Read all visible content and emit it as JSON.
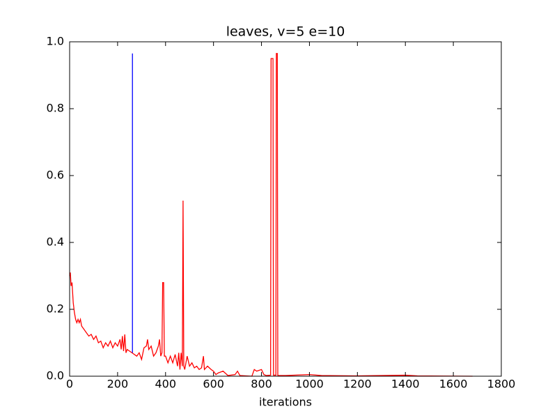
{
  "chart_data": {
    "type": "line",
    "title": "leaves, v=5 e=10",
    "x_label": "iterations",
    "xlim": [
      0,
      1800
    ],
    "xticks": [
      0,
      200,
      400,
      600,
      800,
      1000,
      1200,
      1400,
      1600,
      1800
    ],
    "ylim": [
      0,
      1.0
    ],
    "yticks": [
      {
        "value": 0,
        "label": "0.0"
      },
      {
        "value": 0.2,
        "label": "0.2"
      },
      {
        "value": 0.4,
        "label": "0.4"
      },
      {
        "value": 0.6,
        "label": "0.6"
      },
      {
        "value": 0.8,
        "label": "0.8"
      },
      {
        "value": 1.0,
        "label": "1.0"
      }
    ],
    "grid": false,
    "series": [
      {
        "color": "#ff0000",
        "x": [
          0,
          3,
          6,
          10,
          15,
          20,
          25,
          30,
          35,
          40,
          45,
          50,
          60,
          70,
          80,
          90,
          100,
          110,
          120,
          130,
          140,
          150,
          160,
          170,
          180,
          190,
          200,
          210,
          215,
          220,
          225,
          230,
          235,
          240,
          250,
          260,
          270,
          280,
          290,
          300,
          310,
          320,
          325,
          330,
          340,
          350,
          360,
          370,
          375,
          380,
          385,
          388,
          392,
          395,
          400,
          410,
          420,
          430,
          440,
          450,
          455,
          460,
          465,
          470,
          473,
          476,
          480,
          490,
          500,
          510,
          520,
          530,
          540,
          550,
          558,
          562,
          575,
          590,
          600,
          610,
          620,
          640,
          660,
          690,
          700,
          710,
          760,
          770,
          780,
          800,
          810,
          820,
          838,
          840,
          848,
          850,
          860,
          862,
          866,
          868,
          900,
          1000,
          1050,
          1200,
          1400,
          1450,
          1680
        ],
        "values": [
          0.3,
          0.31,
          0.27,
          0.28,
          0.22,
          0.19,
          0.17,
          0.16,
          0.17,
          0.16,
          0.17,
          0.15,
          0.14,
          0.13,
          0.12,
          0.125,
          0.11,
          0.12,
          0.1,
          0.105,
          0.085,
          0.1,
          0.09,
          0.105,
          0.085,
          0.1,
          0.09,
          0.11,
          0.08,
          0.12,
          0.075,
          0.125,
          0.07,
          0.08,
          0.075,
          0.07,
          0.065,
          0.06,
          0.07,
          0.05,
          0.085,
          0.09,
          0.11,
          0.08,
          0.09,
          0.06,
          0.07,
          0.09,
          0.11,
          0.06,
          0.07,
          0.28,
          0.28,
          0.06,
          0.06,
          0.04,
          0.06,
          0.04,
          0.065,
          0.03,
          0.07,
          0.02,
          0.07,
          0.03,
          0.525,
          0.03,
          0.02,
          0.06,
          0.03,
          0.04,
          0.025,
          0.03,
          0.02,
          0.025,
          0.06,
          0.02,
          0.03,
          0.02,
          0.015,
          0.005,
          0.01,
          0.015,
          0.002,
          0.005,
          0.015,
          0.002,
          0.0,
          0.02,
          0.015,
          0.02,
          0.005,
          0.002,
          0.003,
          0.95,
          0.95,
          0.003,
          0.003,
          0.965,
          0.965,
          0.002,
          0.002,
          0.005,
          0.002,
          0.001,
          0.003,
          0.001,
          0.0
        ]
      },
      {
        "color": "#0000ff",
        "x": [
          262,
          262
        ],
        "values": [
          0.07,
          0.965
        ]
      }
    ]
  }
}
